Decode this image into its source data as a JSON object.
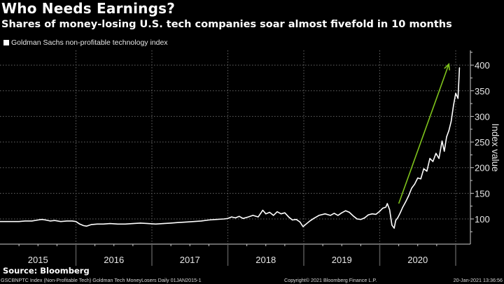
{
  "header": {
    "title": "Who Needs Earnings?",
    "subtitle": "Shares of money-losing U.S. tech companies soar almost fivefold in 10 months"
  },
  "footer": {
    "source": "Source: Bloomberg",
    "ticker_info": "GSCBNPTC Index (Non-Profitable Tech) Goldman Tech MoneyLosers  Daily 01JAN2015-1",
    "copyright": "Copyright© 2021 Bloomberg Finance L.P.",
    "timestamp": "20-Jan-2021 13:36:56"
  },
  "colors": {
    "background": "#000000",
    "series_line": "#ffffff",
    "annotation_arrow": "#7fc31c",
    "grid": "#666666",
    "axis": "#cccccc"
  },
  "chart_data": {
    "type": "line",
    "title": "Who Needs Earnings?",
    "subtitle": "Shares of money-losing U.S. tech companies soar almost fivefold in 10 months",
    "xlabel": "",
    "ylabel": "Index value",
    "x_unit": "year (fractional)",
    "xlim": [
      2015.0,
      2021.2
    ],
    "ylim": [
      65,
      425
    ],
    "yticks": [
      100,
      150,
      200,
      250,
      300,
      350,
      400
    ],
    "ytick_labels": [
      "100",
      "150",
      "200",
      "250",
      "300",
      "350",
      "400"
    ],
    "xticks": [
      2015,
      2016,
      2017,
      2018,
      2019,
      2020
    ],
    "xtick_labels": [
      "2015",
      "2016",
      "2017",
      "2018",
      "2019",
      "2020"
    ],
    "grid": true,
    "y_axis_side": "right",
    "legend": {
      "placement": "top-left",
      "entries": [
        "Goldman Sachs non-profitable technology index"
      ]
    },
    "series": [
      {
        "name": "Goldman Sachs non-profitable technology index",
        "color": "#ffffff",
        "x": [
          2015.0,
          2015.08,
          2015.16,
          2015.25,
          2015.33,
          2015.42,
          2015.5,
          2015.55,
          2015.6,
          2015.66,
          2015.72,
          2015.8,
          2015.88,
          2015.95,
          2016.0,
          2016.05,
          2016.1,
          2016.14,
          2016.2,
          2016.28,
          2016.36,
          2016.45,
          2016.55,
          2016.65,
          2016.75,
          2016.85,
          2016.95,
          2017.05,
          2017.15,
          2017.25,
          2017.35,
          2017.45,
          2017.55,
          2017.65,
          2017.75,
          2017.85,
          2017.95,
          2018.0,
          2018.05,
          2018.1,
          2018.15,
          2018.2,
          2018.27,
          2018.33,
          2018.4,
          2018.46,
          2018.5,
          2018.55,
          2018.6,
          2018.65,
          2018.7,
          2018.75,
          2018.8,
          2018.85,
          2018.9,
          2018.95,
          2018.99,
          2019.03,
          2019.08,
          2019.13,
          2019.2,
          2019.28,
          2019.35,
          2019.4,
          2019.45,
          2019.5,
          2019.55,
          2019.6,
          2019.65,
          2019.7,
          2019.75,
          2019.8,
          2019.85,
          2019.9,
          2019.95,
          2020.0,
          2020.04,
          2020.08,
          2020.1,
          2020.13,
          2020.16,
          2020.19,
          2020.21,
          2020.24,
          2020.27,
          2020.3,
          2020.34,
          2020.38,
          2020.42,
          2020.46,
          2020.5,
          2020.54,
          2020.58,
          2020.62,
          2020.66,
          2020.7,
          2020.74,
          2020.78,
          2020.82,
          2020.85,
          2020.88,
          2020.91,
          2020.94,
          2020.97,
          2021.0,
          2021.03,
          2021.05
        ],
        "y": [
          95,
          95,
          95,
          95,
          96,
          96,
          98,
          99,
          98,
          96,
          97,
          95,
          96,
          96,
          95,
          90,
          87,
          86,
          89,
          90,
          90,
          91,
          90,
          90,
          91,
          92,
          91,
          90,
          91,
          92,
          93,
          94,
          95,
          96,
          98,
          99,
          100,
          101,
          104,
          102,
          105,
          101,
          104,
          107,
          104,
          117,
          110,
          113,
          107,
          114,
          110,
          112,
          104,
          98,
          99,
          94,
          85,
          90,
          96,
          101,
          107,
          110,
          107,
          111,
          107,
          112,
          116,
          113,
          106,
          100,
          99,
          102,
          108,
          110,
          109,
          115,
          121,
          123,
          130,
          118,
          88,
          82,
          97,
          103,
          112,
          122,
          133,
          145,
          160,
          168,
          180,
          178,
          198,
          193,
          218,
          212,
          228,
          218,
          252,
          232,
          260,
          272,
          290,
          320,
          345,
          335,
          395
        ]
      }
    ],
    "annotations": [
      {
        "type": "arrow",
        "color": "#7fc31c",
        "from": {
          "x": 2020.25,
          "y": 130
        },
        "to": {
          "x": 2020.91,
          "y": 402
        }
      }
    ]
  }
}
